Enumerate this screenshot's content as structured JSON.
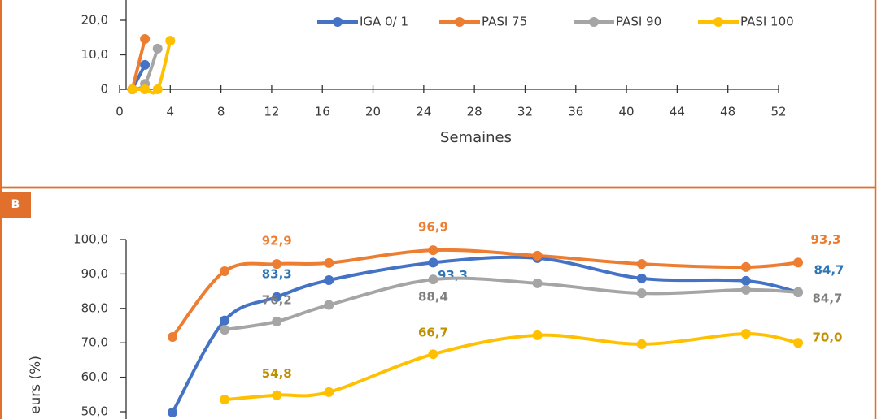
{
  "chart_data": [
    {
      "type": "line",
      "xlabel": "Semaines",
      "xlim": [
        0,
        52
      ],
      "xticks": [
        0,
        4,
        8,
        12,
        16,
        20,
        24,
        28,
        32,
        36,
        40,
        44,
        48,
        52
      ],
      "ylim": [
        0,
        100
      ],
      "yticks": [
        0,
        {
          "value": 10,
          "label": "10,0"
        },
        {
          "value": 20,
          "label": "20,0"
        }
      ],
      "legend": "top-right",
      "series": [
        {
          "name": "IGA 0/ 1",
          "color": "#4472c4",
          "x": [
            1,
            2
          ],
          "values": [
            0,
            7.1
          ]
        },
        {
          "name": "PASI 75",
          "color": "#ed7d31",
          "x": [
            1,
            2
          ],
          "values": [
            0,
            14.6
          ]
        },
        {
          "name": "PASI 90",
          "color": "#a5a5a5",
          "x": [
            1,
            2,
            3
          ],
          "values": [
            0,
            1.6,
            11.8
          ]
        },
        {
          "name": "PASI 100",
          "color": "#ffc000",
          "x": [
            1,
            2,
            3,
            4
          ],
          "values": [
            0,
            0,
            0,
            14.1
          ]
        }
      ]
    },
    {
      "type": "line",
      "panel": "B",
      "ylabel": "eurs (%)",
      "xlim": [
        0,
        52
      ],
      "ylim": [
        0,
        100
      ],
      "yticks": [
        {
          "value": 50,
          "label": "50,0"
        },
        {
          "value": 60,
          "label": "60,0"
        },
        {
          "value": 70,
          "label": "70,0"
        },
        {
          "value": 80,
          "label": "80,0"
        },
        {
          "value": 90,
          "label": "90,0"
        },
        {
          "value": 100,
          "label": "100,0"
        }
      ],
      "series": [
        {
          "name": "IGA 0/ 1",
          "color": "#4472c4",
          "label_color": "#2e75b6",
          "x": [
            4,
            8,
            12,
            16,
            24,
            32,
            40,
            48,
            52
          ],
          "values": [
            49.8,
            76.5,
            83.3,
            88.2,
            93.3,
            94.6,
            88.7,
            88.0,
            84.7
          ],
          "value_labels": [
            null,
            null,
            "83,3",
            null,
            "93,3",
            null,
            null,
            null,
            "84,7"
          ]
        },
        {
          "name": "PASI 75",
          "color": "#ed7d31",
          "label_color": "#ed7d31",
          "x": [
            4,
            8,
            12,
            16,
            24,
            32,
            40,
            48,
            52
          ],
          "values": [
            71.7,
            90.8,
            92.9,
            93.2,
            96.9,
            95.3,
            92.9,
            92.0,
            93.3
          ],
          "value_labels": [
            null,
            null,
            "92,9",
            null,
            "96,9",
            null,
            null,
            null,
            "93,3"
          ]
        },
        {
          "name": "PASI 90",
          "color": "#a5a5a5",
          "label_color": "#7f7f7f",
          "x": [
            8,
            12,
            16,
            24,
            32,
            40,
            48,
            52
          ],
          "values": [
            73.8,
            76.2,
            81.0,
            88.4,
            87.3,
            84.4,
            85.4,
            84.7
          ],
          "value_labels": [
            null,
            "76,2",
            null,
            "88,4",
            null,
            null,
            null,
            "84,7"
          ]
        },
        {
          "name": "PASI 100",
          "color": "#ffc000",
          "label_color": "#bf9000",
          "x": [
            8,
            12,
            16,
            24,
            32,
            40,
            48,
            52
          ],
          "values": [
            53.5,
            54.8,
            55.7,
            66.7,
            72.2,
            69.6,
            72.6,
            70.0
          ],
          "value_labels": [
            null,
            "54,8",
            null,
            "66,7",
            null,
            null,
            null,
            "70,0"
          ]
        }
      ]
    }
  ]
}
